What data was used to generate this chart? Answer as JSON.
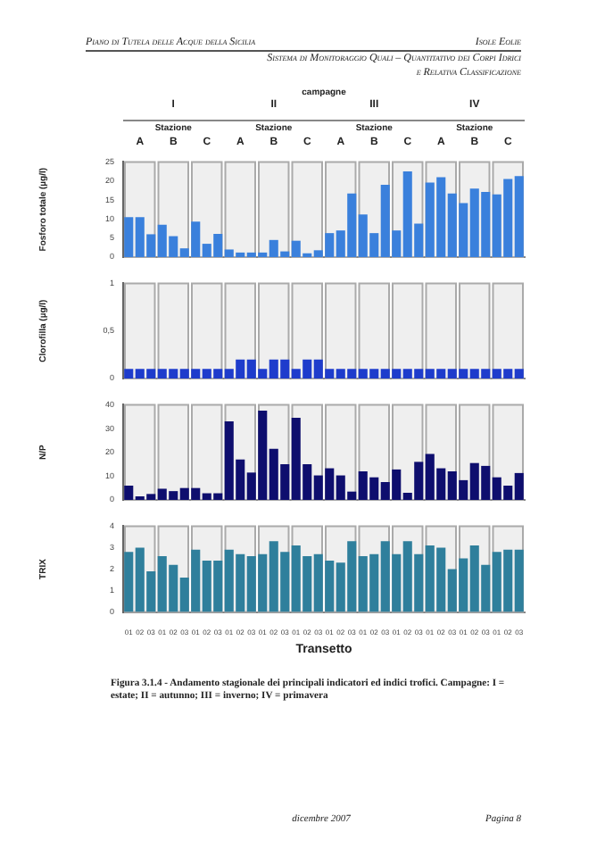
{
  "chart_data": [
    {
      "type": "bar",
      "title": "campagne",
      "ylabel": "Fosforo totale (µg/l)",
      "annotations": [
        "Piano di Tutela delle Acque della Sicilia",
        "Isole Eolie",
        "Sistema di Monitoraggio Quali – Quantitativo dei Corpi Idrici",
        "e Relativa Classificazione",
        "I",
        "II",
        "III",
        "IV",
        "Stazione",
        "Stazione",
        "Stazione",
        "Stazione",
        "A",
        "B",
        "C",
        "A",
        "B",
        "C",
        "A",
        "B",
        "C",
        "A",
        "B",
        "C"
      ],
      "categories": [
        "01",
        "02",
        "03",
        "01",
        "02",
        "03",
        "01",
        "02",
        "03",
        "01",
        "02",
        "03",
        "01",
        "02",
        "03",
        "01",
        "02",
        "03",
        "01",
        "02",
        "03",
        "01",
        "02",
        "03",
        "01",
        "02",
        "03",
        "01",
        "02",
        "03",
        "01",
        "02",
        "03",
        "01",
        "02",
        "03"
      ],
      "values": [
        10.5,
        10.5,
        6,
        8.5,
        5.5,
        2.3,
        9.3,
        3.5,
        6.1,
        2,
        1.2,
        1.2,
        1.2,
        4.5,
        1.5,
        4.3,
        1,
        1.8,
        6.3,
        7,
        16.7,
        11.2,
        6.3,
        19,
        7,
        22.5,
        8.8,
        19.6,
        21,
        16.7,
        14.2,
        18,
        17.1,
        16.5,
        20.5,
        21.3
      ],
      "color": "#3a80dc",
      "ylim": [
        0,
        25
      ],
      "yticks": [
        0,
        5,
        10,
        15,
        20,
        25
      ],
      "tick_labels": "y"
    },
    {
      "type": "bar",
      "ylabel": "Clorofilla (µg/l)",
      "categories": [
        "01",
        "02",
        "03",
        "01",
        "02",
        "03",
        "01",
        "02",
        "03",
        "01",
        "02",
        "03",
        "01",
        "02",
        "03",
        "01",
        "02",
        "03",
        "01",
        "02",
        "03",
        "01",
        "02",
        "03",
        "01",
        "02",
        "03",
        "01",
        "02",
        "03",
        "01",
        "02",
        "03",
        "01",
        "02",
        "03"
      ],
      "values": [
        0.1,
        0.1,
        0.1,
        0.1,
        0.1,
        0.1,
        0.1,
        0.1,
        0.1,
        0.1,
        0.2,
        0.2,
        0.1,
        0.2,
        0.2,
        0.1,
        0.2,
        0.2,
        0.1,
        0.1,
        0.1,
        0.1,
        0.1,
        0.1,
        0.1,
        0.1,
        0.1,
        0.1,
        0.1,
        0.1,
        0.1,
        0.1,
        0.1,
        0.1,
        0.1,
        0.1
      ],
      "color": "#1e3ccc",
      "ylim": [
        0,
        1
      ],
      "yticks": [
        0,
        {
          "value": 0.5,
          "label": "0,5"
        },
        1
      ],
      "tick_labels": "y"
    },
    {
      "type": "bar",
      "ylabel": "N/P",
      "categories": [
        "01",
        "02",
        "03",
        "01",
        "02",
        "03",
        "01",
        "02",
        "03",
        "01",
        "02",
        "03",
        "01",
        "02",
        "03",
        "01",
        "02",
        "03",
        "01",
        "02",
        "03",
        "01",
        "02",
        "03",
        "01",
        "02",
        "03",
        "01",
        "02",
        "03",
        "01",
        "02",
        "03",
        "01",
        "02",
        "03"
      ],
      "values": [
        6,
        1.5,
        2.5,
        4.7,
        3.7,
        5,
        5,
        2.8,
        2.8,
        33,
        17,
        11.5,
        37.5,
        21.5,
        15,
        34.5,
        15,
        10.3,
        13.3,
        10.3,
        3.5,
        12,
        9.5,
        7.5,
        12.8,
        3,
        16,
        19.3,
        13.3,
        12,
        8.3,
        15.5,
        14.3,
        9.5,
        6,
        11.3
      ],
      "color": "#0e0e6e",
      "ylim": [
        0,
        40
      ],
      "yticks": [
        0,
        10,
        20,
        30,
        40
      ],
      "tick_labels": "y"
    },
    {
      "type": "bar",
      "ylabel": "TRIX",
      "xlabel": "Transetto",
      "annotations": [
        "Figura 3.1.4 - Andamento stagionale dei principali indicatori ed indici trofici. Campagne: I = estate; II = autunno; III = inverno; IV = primavera",
        "dicembre 2007",
        "Pagina 8"
      ],
      "categories": [
        "01",
        "02",
        "03",
        "01",
        "02",
        "03",
        "01",
        "02",
        "03",
        "01",
        "02",
        "03",
        "01",
        "02",
        "03",
        "01",
        "02",
        "03",
        "01",
        "02",
        "03",
        "01",
        "02",
        "03",
        "01",
        "02",
        "03",
        "01",
        "02",
        "03",
        "01",
        "02",
        "03",
        "01",
        "02",
        "03"
      ],
      "values": [
        2.8,
        3.0,
        1.9,
        2.6,
        2.2,
        1.6,
        2.9,
        2.4,
        2.4,
        2.9,
        2.7,
        2.6,
        2.7,
        3.3,
        2.8,
        3.1,
        2.6,
        2.7,
        2.4,
        2.3,
        3.3,
        2.6,
        2.7,
        3.3,
        2.7,
        3.3,
        2.7,
        3.1,
        3.0,
        2.0,
        2.5,
        3.1,
        2.2,
        2.8,
        2.9,
        2.9
      ],
      "color": "#2f7f9c",
      "ylim": [
        0,
        4
      ],
      "yticks": [
        0,
        1,
        2,
        3,
        4
      ]
    }
  ]
}
